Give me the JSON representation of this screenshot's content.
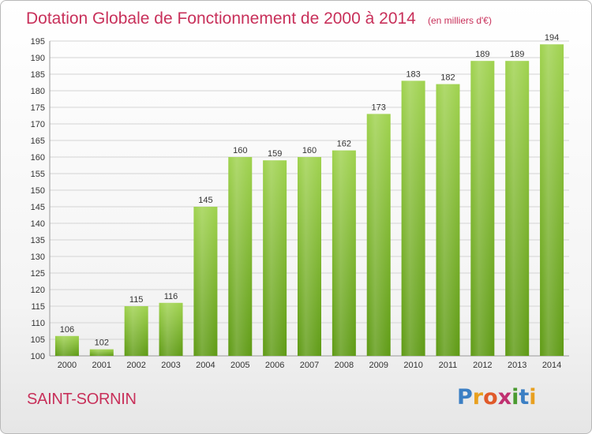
{
  "chart_data": {
    "type": "bar",
    "title": "Dotation Globale de Fonctionnement de 2000 à 2014",
    "subtitle": "(en milliers d'€)",
    "categories": [
      "2000",
      "2001",
      "2002",
      "2003",
      "2004",
      "2005",
      "2006",
      "2007",
      "2008",
      "2009",
      "2010",
      "2011",
      "2012",
      "2013",
      "2014"
    ],
    "values": [
      106,
      102,
      115,
      116,
      145,
      160,
      159,
      160,
      162,
      173,
      183,
      182,
      189,
      189,
      194
    ],
    "ylim": [
      100,
      195
    ],
    "yticks": [
      100,
      105,
      110,
      115,
      120,
      125,
      130,
      135,
      140,
      145,
      150,
      155,
      160,
      165,
      170,
      175,
      180,
      185,
      190,
      195
    ],
    "grid": true,
    "bar_color": "#7cb82f"
  },
  "commune_name": "SAINT-SORNIN",
  "logo": {
    "letters": [
      "P",
      "r",
      "o",
      "x",
      "i",
      "t",
      "i"
    ],
    "colors": [
      "#3b7fc4",
      "#e8a020",
      "#e05a2a",
      "#c03070",
      "#4a9a30",
      "#3b7fc4",
      "#e8a020"
    ]
  }
}
